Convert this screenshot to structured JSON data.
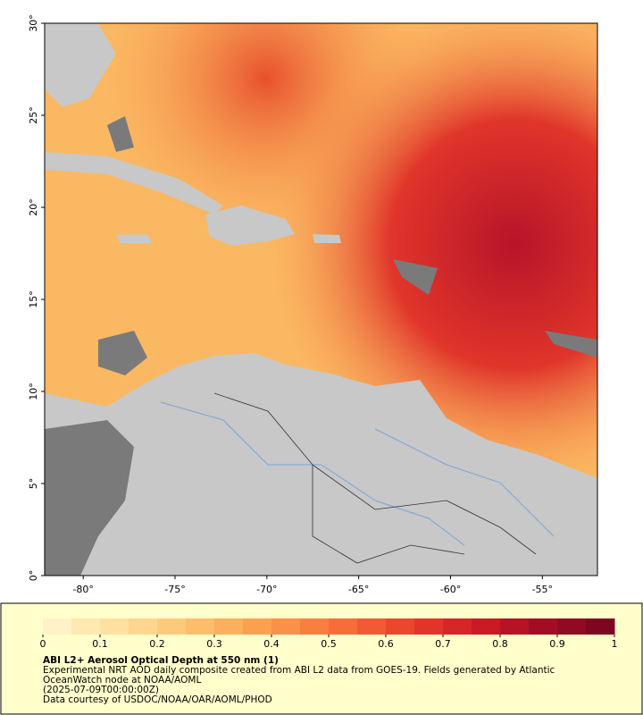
{
  "map": {
    "xlim": [
      -82.1,
      -52
    ],
    "ylim": [
      0,
      30
    ],
    "xticks": [
      {
        "value": -80,
        "label": "-80°"
      },
      {
        "value": -75,
        "label": "-75°"
      },
      {
        "value": -70,
        "label": "-70°"
      },
      {
        "value": -65,
        "label": "-65°"
      },
      {
        "value": -60,
        "label": "-60°"
      },
      {
        "value": -55,
        "label": "-55°"
      }
    ],
    "yticks": [
      {
        "value": 0,
        "label": "0°"
      },
      {
        "value": 5,
        "label": "5°"
      },
      {
        "value": 10,
        "label": "10°"
      },
      {
        "value": 15,
        "label": "15°"
      },
      {
        "value": 20,
        "label": "20°"
      },
      {
        "value": 25,
        "label": "25°"
      },
      {
        "value": 30,
        "label": "30°"
      }
    ]
  },
  "colorbar": {
    "range": [
      0,
      1
    ],
    "ticks": [
      0,
      0.1,
      0.2,
      0.3,
      0.4,
      0.5,
      0.6,
      0.7,
      0.8,
      0.9,
      1
    ],
    "colors": [
      "#fff2c8",
      "#fee9b0",
      "#fee0a0",
      "#fed690",
      "#fdca7c",
      "#fdbd6a",
      "#fcaf5c",
      "#fca050",
      "#fb9048",
      "#f97f40",
      "#f66d3a",
      "#f15a34",
      "#eb462e",
      "#e3342a",
      "#d82527",
      "#c91a26",
      "#b71325",
      "#a30d24",
      "#900a23",
      "#7e0623"
    ]
  },
  "caption": {
    "title": "ABI L2+ Aerosol Optical Depth at 550 nm (1)",
    "lines": [
      "Experimental NRT AOD daily composite created from ABI L2 data from GOES-19. Fields generated by Atlantic",
      "OceanWatch node at NOAA/AOML",
      "(2025-07-09T00:00:00Z)",
      "Data courtesy of USDOC/NOAA/OAR/AOML/PHOD"
    ]
  }
}
